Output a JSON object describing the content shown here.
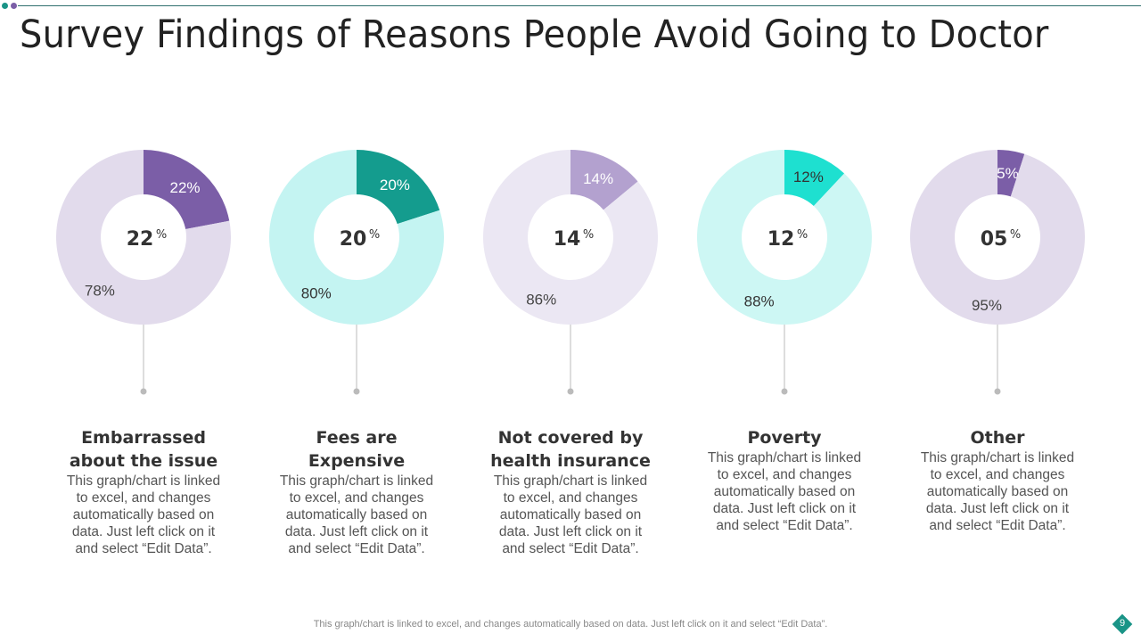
{
  "title": "Survey Findings of Reasons People Avoid Going to Doctor",
  "footer": "This graph/chart is linked to excel,  and changes automatically based on data. Just left click on it and select “Edit Data”.",
  "page_number": "9",
  "colors": {
    "accent_teal": "#1a9487",
    "accent_purple": "#7b5ea7"
  },
  "chart_data": {
    "type": "pie",
    "variant": "donut",
    "title": "Survey Findings of Reasons People Avoid Going to Doctor",
    "charts": [
      {
        "category": "Embarrassed about the issue",
        "center_label": "22",
        "center_unit": "%",
        "values": [
          22,
          78
        ],
        "labels": [
          "22%",
          "78%"
        ],
        "colors": [
          "#7b5ea7",
          "#e2dbec"
        ],
        "label_colors": [
          "#ffffff",
          "#444444"
        ]
      },
      {
        "category": "Fees are Expensive",
        "center_label": "20",
        "center_unit": "%",
        "values": [
          20,
          80
        ],
        "labels": [
          "20%",
          "80%"
        ],
        "colors": [
          "#149c8e",
          "#c4f4f2"
        ],
        "label_colors": [
          "#ffffff",
          "#333333"
        ]
      },
      {
        "category": "Not covered by health insurance",
        "center_label": "14",
        "center_unit": "%",
        "values": [
          14,
          86
        ],
        "labels": [
          "14%",
          "86%"
        ],
        "colors": [
          "#b3a1cf",
          "#ebe7f3"
        ],
        "label_colors": [
          "#ffffff",
          "#444444"
        ]
      },
      {
        "category": "Poverty",
        "center_label": "12",
        "center_unit": "%",
        "values": [
          12,
          88
        ],
        "labels": [
          "12%",
          "88%"
        ],
        "colors": [
          "#1ee0d0",
          "#cdf7f4"
        ],
        "label_colors": [
          "#333333",
          "#333333"
        ]
      },
      {
        "category": "Other",
        "center_label": "05",
        "center_unit": "%",
        "values": [
          5,
          95
        ],
        "labels": [
          "5%",
          "95%"
        ],
        "colors": [
          "#7b5ea7",
          "#e2dbec"
        ],
        "label_colors": [
          "#ffffff",
          "#444444"
        ]
      }
    ]
  },
  "columns": [
    {
      "title_lines": [
        "Embarrassed",
        "about the issue"
      ],
      "desc_lines": [
        "This graph/chart is linked",
        "to excel, and changes",
        "automatically based on",
        "data. Just left click on it",
        "and select “Edit Data”."
      ]
    },
    {
      "title_lines": [
        "Fees are",
        "Expensive"
      ],
      "desc_lines": [
        "This graph/chart is linked",
        "to excel, and changes",
        "automatically based on",
        "data. Just left click on it",
        "and select “Edit Data”."
      ]
    },
    {
      "title_lines": [
        "Not covered by",
        "health insurance"
      ],
      "desc_lines": [
        "This graph/chart is linked",
        "to excel, and changes",
        "automatically based on",
        "data. Just left click on it",
        "and select “Edit Data”."
      ]
    },
    {
      "title_lines": [
        "Poverty"
      ],
      "desc_lines": [
        "This graph/chart is linked",
        "to excel, and changes",
        "automatically based on",
        "data. Just left click on it",
        "and select “Edit Data”."
      ]
    },
    {
      "title_lines": [
        "Other"
      ],
      "desc_lines": [
        "This graph/chart is linked",
        "to excel, and changes",
        "automatically based on",
        "data. Just left click on it",
        "and select “Edit Data”."
      ]
    }
  ]
}
